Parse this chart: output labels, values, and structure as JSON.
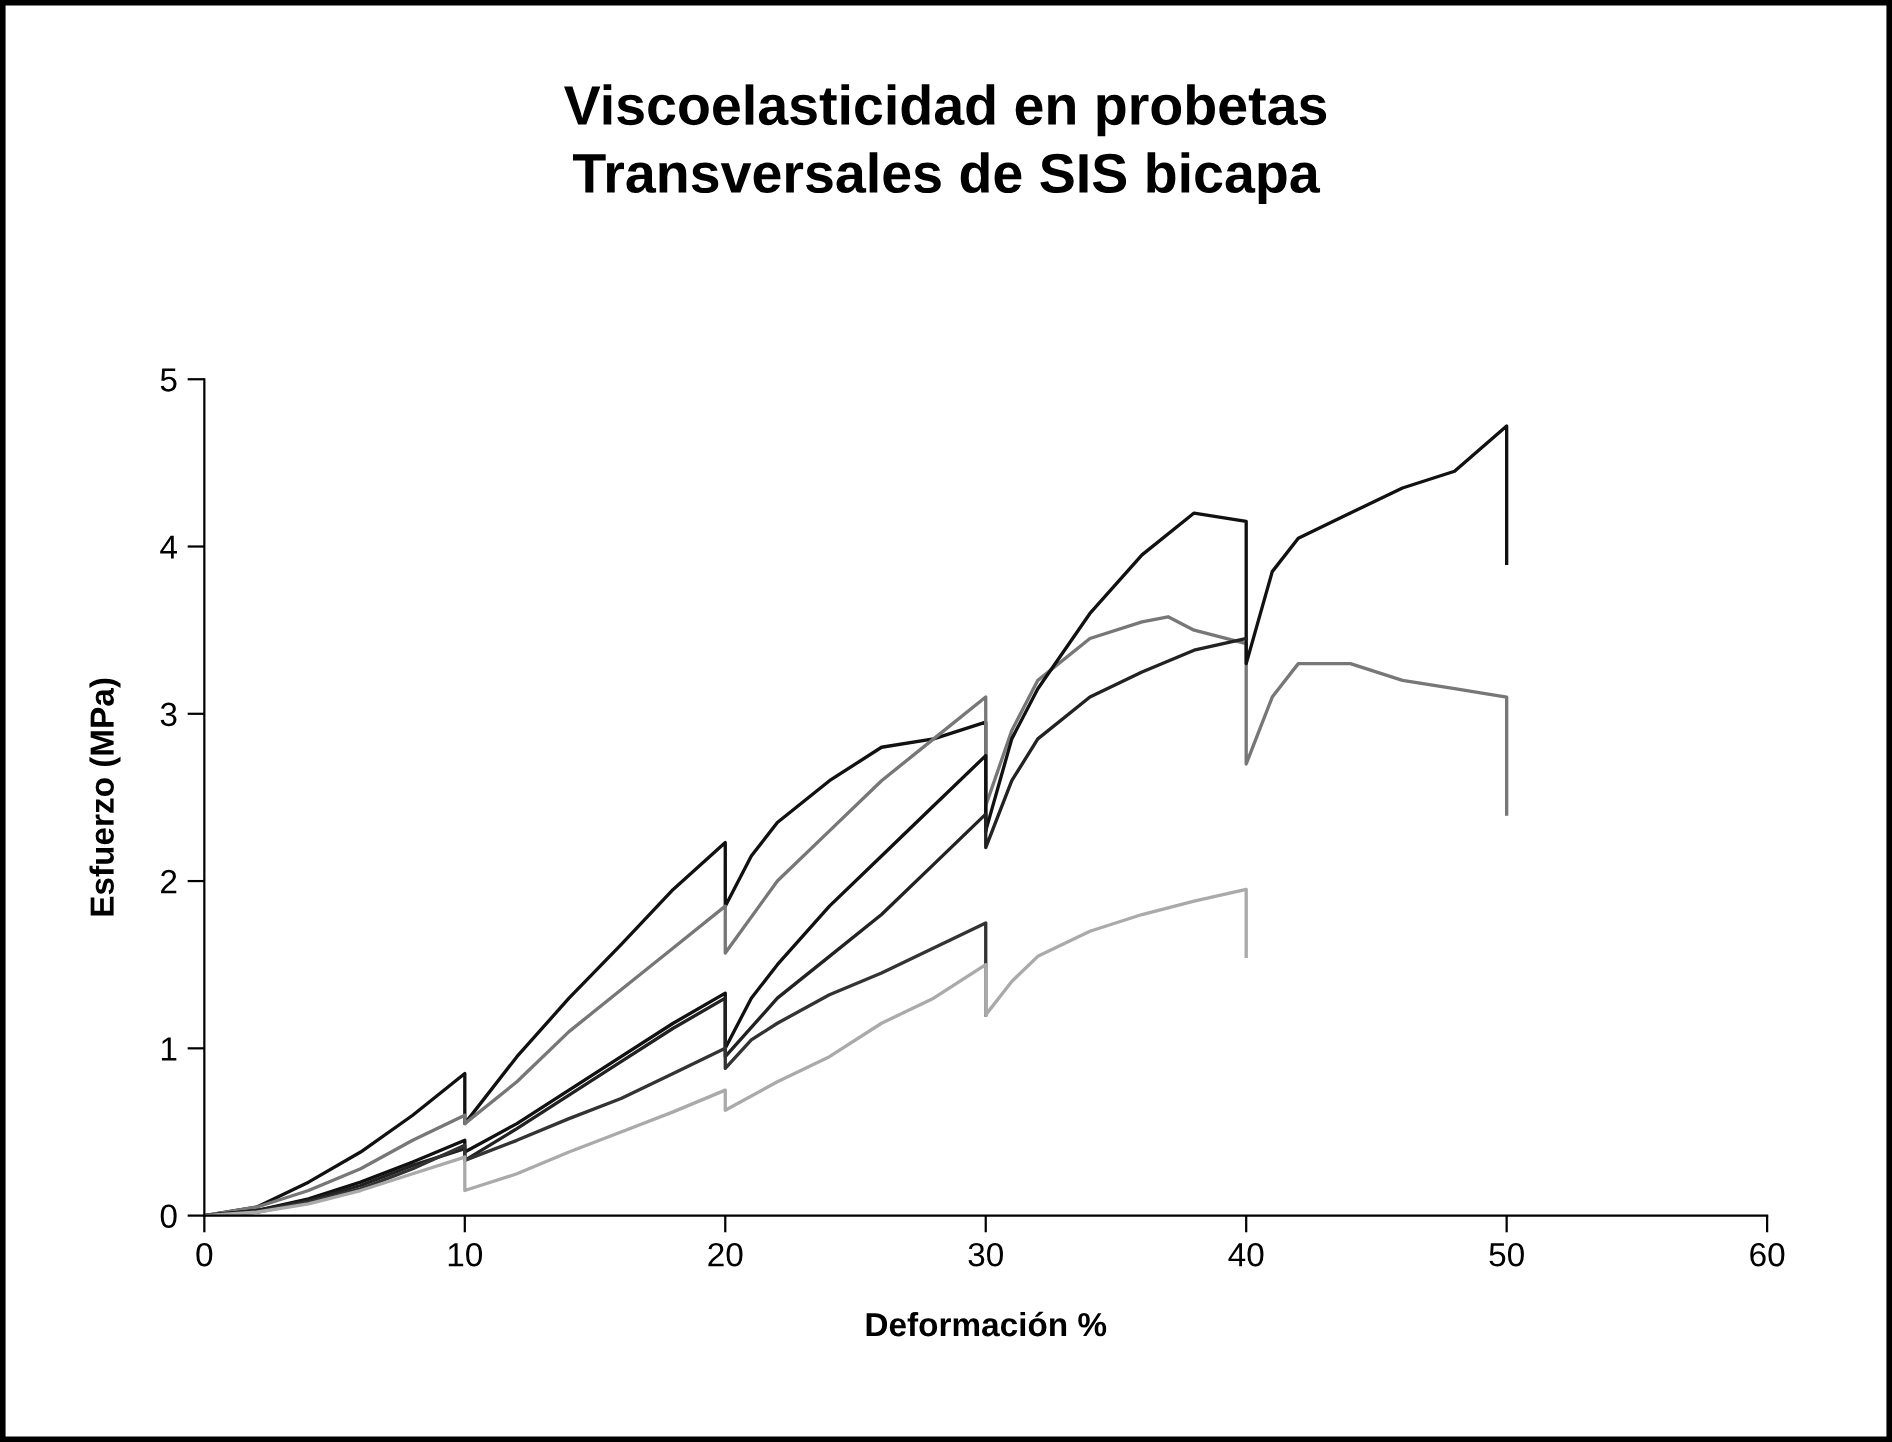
{
  "chart_data": {
    "type": "line",
    "title": "Viscoelasticidad en probetas\nTransversales de SIS bicapa",
    "xlabel": "Deformación %",
    "ylabel": "Esfuerzo (MPa)",
    "xlim": [
      0,
      60
    ],
    "ylim": [
      0,
      5
    ],
    "xticks": [
      0,
      10,
      20,
      30,
      40,
      50,
      60
    ],
    "yticks": [
      0,
      1,
      2,
      3,
      4,
      5
    ],
    "grid": false,
    "legend": false,
    "line_style": "solid",
    "marker": "none",
    "series": [
      {
        "color": "#111111",
        "x": [
          0,
          2,
          4,
          6,
          8,
          10,
          10,
          12,
          14,
          16,
          18,
          20,
          20,
          21,
          22,
          24,
          26,
          28,
          30,
          30
        ],
        "values": [
          0,
          0.05,
          0.2,
          0.38,
          0.6,
          0.85,
          0.55,
          0.95,
          1.3,
          1.62,
          1.95,
          2.23,
          1.85,
          2.15,
          2.35,
          2.6,
          2.8,
          2.85,
          2.95,
          2.3
        ]
      },
      {
        "color": "#777777",
        "x": [
          0,
          2,
          4,
          6,
          8,
          10,
          10,
          12,
          14,
          16,
          18,
          20,
          20,
          22,
          24,
          26,
          28,
          30,
          30,
          31,
          32,
          34,
          36,
          37,
          38,
          40,
          40,
          41,
          42,
          44,
          46,
          48,
          50,
          50
        ],
        "values": [
          0,
          0.05,
          0.15,
          0.28,
          0.45,
          0.6,
          0.55,
          0.8,
          1.1,
          1.35,
          1.6,
          1.85,
          1.57,
          2.0,
          2.3,
          2.6,
          2.85,
          3.1,
          2.45,
          2.9,
          3.2,
          3.45,
          3.55,
          3.58,
          3.5,
          3.42,
          2.7,
          3.1,
          3.3,
          3.3,
          3.2,
          3.15,
          3.1,
          2.4
        ]
      },
      {
        "color": "#111111",
        "x": [
          0,
          2,
          4,
          6,
          8,
          10,
          10,
          12,
          14,
          16,
          18,
          20,
          20,
          21,
          22,
          24,
          26,
          28,
          30,
          30,
          31,
          32,
          34,
          36,
          38,
          40,
          40,
          41,
          42,
          44,
          46,
          48,
          50,
          50
        ],
        "values": [
          0,
          0.03,
          0.1,
          0.2,
          0.32,
          0.45,
          0.38,
          0.55,
          0.75,
          0.95,
          1.15,
          1.33,
          1.0,
          1.3,
          1.5,
          1.85,
          2.15,
          2.45,
          2.75,
          2.3,
          2.85,
          3.15,
          3.6,
          3.95,
          4.2,
          4.15,
          3.3,
          3.85,
          4.05,
          4.2,
          4.35,
          4.45,
          4.72,
          3.9
        ]
      },
      {
        "color": "#222222",
        "x": [
          0,
          2,
          4,
          6,
          8,
          10,
          10,
          12,
          14,
          16,
          18,
          20,
          20,
          22,
          24,
          26,
          28,
          30,
          30,
          31,
          32,
          34,
          36,
          38,
          40
        ],
        "values": [
          0,
          0.03,
          0.09,
          0.18,
          0.3,
          0.4,
          0.33,
          0.52,
          0.72,
          0.92,
          1.12,
          1.3,
          0.95,
          1.3,
          1.55,
          1.8,
          2.1,
          2.4,
          2.2,
          2.6,
          2.85,
          3.1,
          3.25,
          3.38,
          3.45
        ]
      },
      {
        "color": "#333333",
        "x": [
          0,
          2,
          4,
          6,
          8,
          10,
          10,
          12,
          14,
          16,
          18,
          20,
          20,
          21,
          22,
          24,
          26,
          28,
          30,
          30
        ],
        "values": [
          0,
          0.02,
          0.08,
          0.16,
          0.28,
          0.42,
          0.33,
          0.45,
          0.58,
          0.7,
          0.85,
          1.0,
          0.88,
          1.05,
          1.15,
          1.32,
          1.45,
          1.6,
          1.75,
          1.2
        ]
      },
      {
        "color": "#aaaaaa",
        "x": [
          0,
          2,
          4,
          6,
          8,
          10,
          10,
          12,
          14,
          16,
          18,
          20,
          20,
          22,
          24,
          26,
          28,
          30,
          30,
          31,
          32,
          34,
          36,
          38,
          40,
          40
        ],
        "values": [
          0,
          0.02,
          0.07,
          0.15,
          0.25,
          0.35,
          0.15,
          0.25,
          0.38,
          0.5,
          0.62,
          0.75,
          0.63,
          0.8,
          0.95,
          1.15,
          1.3,
          1.5,
          1.2,
          1.4,
          1.55,
          1.7,
          1.8,
          1.88,
          1.95,
          1.55
        ]
      }
    ]
  }
}
